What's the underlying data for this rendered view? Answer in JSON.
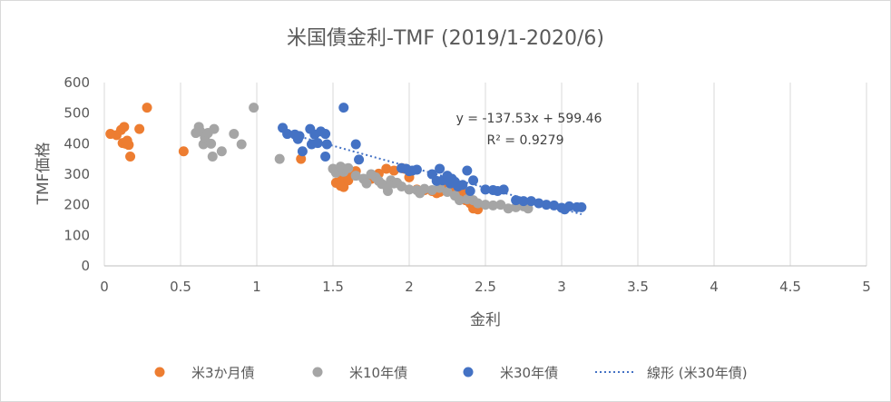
{
  "chart_data": {
    "type": "scatter",
    "title": "米国債金利-TMF (2019/1-2020/6)",
    "xlabel": "金利",
    "ylabel": "TMF価格",
    "xlim": [
      0,
      5
    ],
    "ylim": [
      0,
      600
    ],
    "xticks": [
      "0",
      "0.5",
      "1",
      "1.5",
      "2",
      "2.5",
      "3",
      "3.5",
      "4",
      "4.5",
      "5"
    ],
    "yticks": [
      "0",
      "100",
      "200",
      "300",
      "400",
      "500",
      "600"
    ],
    "grid": {
      "vertical": true,
      "horizontal": false
    },
    "legend_position": "bottom",
    "series": [
      {
        "name": "米3か月債",
        "color": "#ED7D31",
        "points": [
          [
            0.04,
            432
          ],
          [
            0.08,
            428
          ],
          [
            0.11,
            445
          ],
          [
            0.12,
            402
          ],
          [
            0.13,
            455
          ],
          [
            0.14,
            400
          ],
          [
            0.16,
            396
          ],
          [
            0.15,
            410
          ],
          [
            0.17,
            358
          ],
          [
            0.23,
            448
          ],
          [
            0.28,
            518
          ],
          [
            0.52,
            375
          ],
          [
            1.29,
            350
          ],
          [
            1.52,
            272
          ],
          [
            1.55,
            262
          ],
          [
            1.56,
            285
          ],
          [
            1.57,
            258
          ],
          [
            1.58,
            278
          ],
          [
            1.6,
            280
          ],
          [
            1.62,
            300
          ],
          [
            1.65,
            310
          ],
          [
            1.75,
            285
          ],
          [
            1.8,
            302
          ],
          [
            1.85,
            318
          ],
          [
            1.9,
            312
          ],
          [
            1.95,
            320
          ],
          [
            1.97,
            318
          ],
          [
            2.0,
            290
          ],
          [
            2.05,
            250
          ],
          [
            2.1,
            248
          ],
          [
            2.15,
            245
          ],
          [
            2.18,
            238
          ],
          [
            2.2,
            242
          ],
          [
            2.25,
            255
          ],
          [
            2.3,
            252
          ],
          [
            2.35,
            240
          ],
          [
            2.37,
            215
          ],
          [
            2.4,
            205
          ],
          [
            2.42,
            188
          ],
          [
            2.43,
            190
          ],
          [
            2.45,
            185
          ]
        ]
      },
      {
        "name": "米10年債",
        "color": "#A5A5A5",
        "points": [
          [
            0.6,
            435
          ],
          [
            0.62,
            455
          ],
          [
            0.63,
            440
          ],
          [
            0.65,
            398
          ],
          [
            0.66,
            420
          ],
          [
            0.68,
            435
          ],
          [
            0.7,
            400
          ],
          [
            0.71,
            358
          ],
          [
            0.72,
            448
          ],
          [
            0.77,
            375
          ],
          [
            0.85,
            432
          ],
          [
            0.9,
            398
          ],
          [
            0.98,
            518
          ],
          [
            1.15,
            350
          ],
          [
            1.5,
            318
          ],
          [
            1.52,
            305
          ],
          [
            1.55,
            325
          ],
          [
            1.57,
            308
          ],
          [
            1.58,
            318
          ],
          [
            1.6,
            320
          ],
          [
            1.65,
            295
          ],
          [
            1.7,
            285
          ],
          [
            1.72,
            270
          ],
          [
            1.75,
            300
          ],
          [
            1.78,
            290
          ],
          [
            1.8,
            278
          ],
          [
            1.82,
            268
          ],
          [
            1.85,
            262
          ],
          [
            1.86,
            245
          ],
          [
            1.88,
            280
          ],
          [
            1.9,
            270
          ],
          [
            1.92,
            272
          ],
          [
            1.95,
            260
          ],
          [
            2.0,
            250
          ],
          [
            2.05,
            248
          ],
          [
            2.07,
            238
          ],
          [
            2.1,
            252
          ],
          [
            2.15,
            248
          ],
          [
            2.2,
            255
          ],
          [
            2.25,
            242
          ],
          [
            2.3,
            230
          ],
          [
            2.33,
            215
          ],
          [
            2.38,
            218
          ],
          [
            2.42,
            215
          ],
          [
            2.45,
            205
          ],
          [
            2.5,
            200
          ],
          [
            2.55,
            198
          ],
          [
            2.6,
            200
          ],
          [
            2.65,
            188
          ],
          [
            2.7,
            192
          ],
          [
            2.75,
            195
          ],
          [
            2.78,
            188
          ]
        ]
      },
      {
        "name": "米30年債",
        "color": "#4472C4",
        "points": [
          [
            1.17,
            452
          ],
          [
            1.2,
            432
          ],
          [
            1.25,
            430
          ],
          [
            1.27,
            415
          ],
          [
            1.28,
            425
          ],
          [
            1.3,
            375
          ],
          [
            1.35,
            448
          ],
          [
            1.36,
            398
          ],
          [
            1.38,
            430
          ],
          [
            1.4,
            402
          ],
          [
            1.42,
            440
          ],
          [
            1.45,
            432
          ],
          [
            1.46,
            398
          ],
          [
            1.45,
            358
          ],
          [
            1.57,
            518
          ],
          [
            1.65,
            398
          ],
          [
            1.67,
            348
          ],
          [
            1.95,
            320
          ],
          [
            1.98,
            318
          ],
          [
            2.0,
            310
          ],
          [
            2.02,
            312
          ],
          [
            2.05,
            315
          ],
          [
            2.15,
            300
          ],
          [
            2.18,
            278
          ],
          [
            2.2,
            318
          ],
          [
            2.22,
            280
          ],
          [
            2.25,
            295
          ],
          [
            2.27,
            270
          ],
          [
            2.28,
            285
          ],
          [
            2.3,
            275
          ],
          [
            2.32,
            260
          ],
          [
            2.35,
            265
          ],
          [
            2.38,
            312
          ],
          [
            2.4,
            245
          ],
          [
            2.42,
            280
          ],
          [
            2.5,
            250
          ],
          [
            2.55,
            248
          ],
          [
            2.58,
            245
          ],
          [
            2.62,
            250
          ],
          [
            2.7,
            215
          ],
          [
            2.75,
            212
          ],
          [
            2.8,
            212
          ],
          [
            2.85,
            205
          ],
          [
            2.9,
            200
          ],
          [
            2.95,
            198
          ],
          [
            3.0,
            190
          ],
          [
            3.02,
            185
          ],
          [
            3.05,
            195
          ],
          [
            3.1,
            192
          ],
          [
            3.13,
            192
          ]
        ]
      }
    ],
    "trendline": {
      "name": "線形 (米30年債)",
      "series": "米30年債",
      "type": "linear",
      "slope": -137.53,
      "intercept": 599.46,
      "x_range": [
        1.17,
        3.13
      ],
      "color": "#4472C4",
      "equation": "y = -137.53x + 599.46",
      "r2": "R² = 0.9279"
    }
  }
}
